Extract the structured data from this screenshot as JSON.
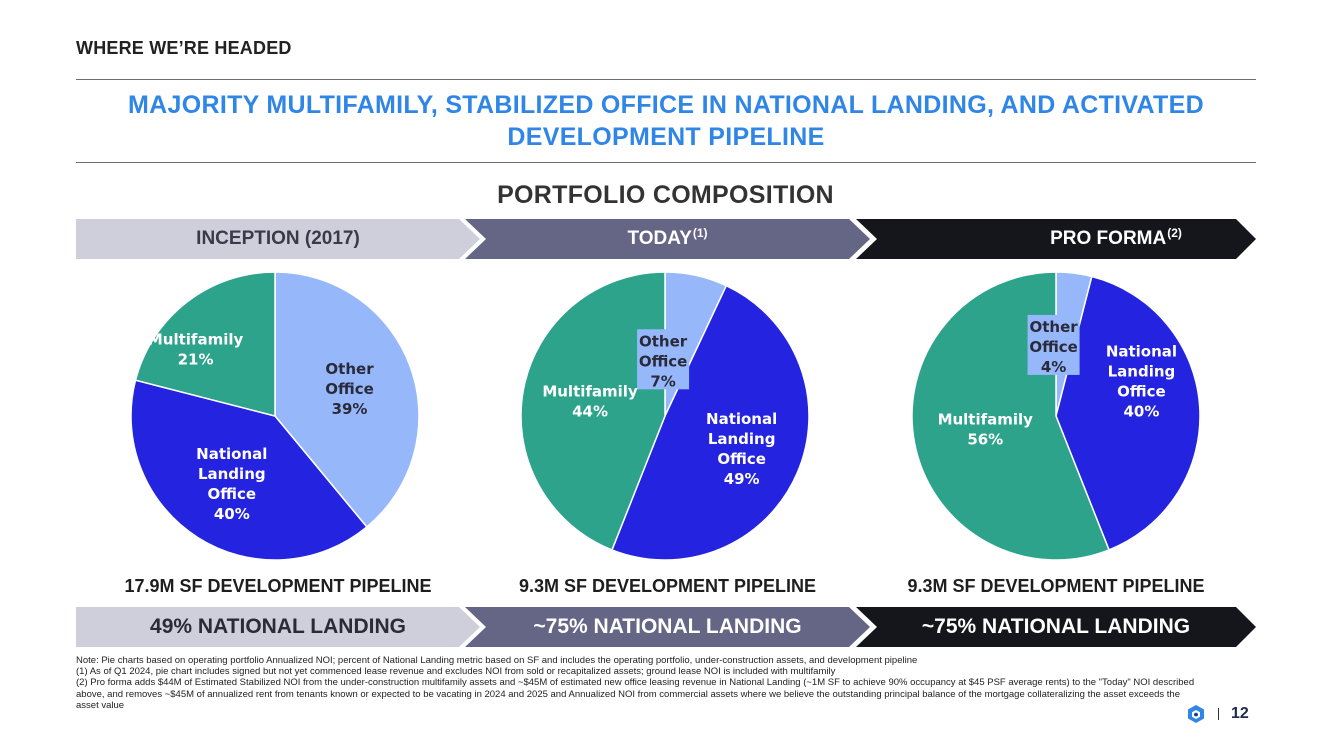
{
  "header": {
    "section_label": "WHERE WE’RE HEADED",
    "title_line1": "MAJORITY MULTIFAMILY, STABILIZED OFFICE IN NATIONAL LANDING, AND ACTIVATED",
    "title_line2": "DEVELOPMENT PIPELINE",
    "subtitle": "PORTFOLIO COMPOSITION"
  },
  "colors": {
    "title_blue": "#2f86e6",
    "inception_banner": "#cfcfdc",
    "today_banner": "#656585",
    "proforma_banner": "#15151c",
    "other_office": "#96b8fa",
    "national_landing_office": "#2424e0",
    "multifamily": "#2ea38c"
  },
  "panels": [
    {
      "banner_label": "INCEPTION (2017)",
      "banner_sup": "",
      "pipeline": "17.9M SF DEVELOPMENT PIPELINE",
      "national_landing": "49% NATIONAL LANDING"
    },
    {
      "banner_label": "TODAY",
      "banner_sup": "(1)",
      "pipeline": "9.3M SF DEVELOPMENT PIPELINE",
      "national_landing": "~75% NATIONAL LANDING"
    },
    {
      "banner_label": "PRO FORMA",
      "banner_sup": "(2)",
      "pipeline": "9.3M SF DEVELOPMENT PIPELINE",
      "national_landing": "~75% NATIONAL LANDING"
    }
  ],
  "chart_data": [
    {
      "type": "pie",
      "title": "INCEPTION (2017)",
      "slices": [
        {
          "name": "Other Office",
          "value": 39,
          "label_lines": [
            "Other",
            "Office",
            "39%"
          ]
        },
        {
          "name": "National Landing Office",
          "value": 40,
          "label_lines": [
            "National",
            "Landing",
            "Office",
            "40%"
          ]
        },
        {
          "name": "Multifamily",
          "value": 21,
          "label_lines": [
            "Multifamily",
            "21%"
          ]
        }
      ]
    },
    {
      "type": "pie",
      "title": "TODAY",
      "slices": [
        {
          "name": "Other Office",
          "value": 7,
          "label_lines": [
            "Other",
            "Office",
            "7%"
          ]
        },
        {
          "name": "National Landing Office",
          "value": 49,
          "label_lines": [
            "National",
            "Landing",
            "Office",
            "49%"
          ]
        },
        {
          "name": "Multifamily",
          "value": 44,
          "label_lines": [
            "Multifamily",
            "44%"
          ]
        }
      ]
    },
    {
      "type": "pie",
      "title": "PRO FORMA",
      "slices": [
        {
          "name": "Other Office",
          "value": 4,
          "label_lines": [
            "Other",
            "Office",
            "4%"
          ]
        },
        {
          "name": "National Landing Office",
          "value": 40,
          "label_lines": [
            "National",
            "Landing",
            "Office",
            "40%"
          ]
        },
        {
          "name": "Multifamily",
          "value": 56,
          "label_lines": [
            "Multifamily",
            "56%"
          ]
        }
      ]
    }
  ],
  "footnotes": {
    "note": "Note: Pie charts based on operating portfolio Annualized NOI; percent of National Landing metric based on SF and includes the operating portfolio, under-construction assets, and development pipeline",
    "fn1": "(1) As of Q1 2024, pie chart includes signed but not yet commenced lease revenue and excludes NOI from sold or recapitalized assets; ground lease NOI is included with multifamily",
    "fn2": "(2) Pro forma adds $44M of Estimated Stabilized NOI from the under-construction multifamily assets and ~$45M of estimated new office leasing revenue in National Landing (~1M SF to achieve 90% occupancy at $45 PSF average rents) to the \"Today\" NOI described above, and removes ~$45M of annualized rent from tenants known or expected to be vacating in 2024 and 2025 and Annualized NOI from commercial assets where we believe the outstanding principal balance of the mortgage collateralizing the asset exceeds the asset value"
  },
  "page": {
    "number": "12",
    "logo_icon": "company-logo-icon"
  }
}
